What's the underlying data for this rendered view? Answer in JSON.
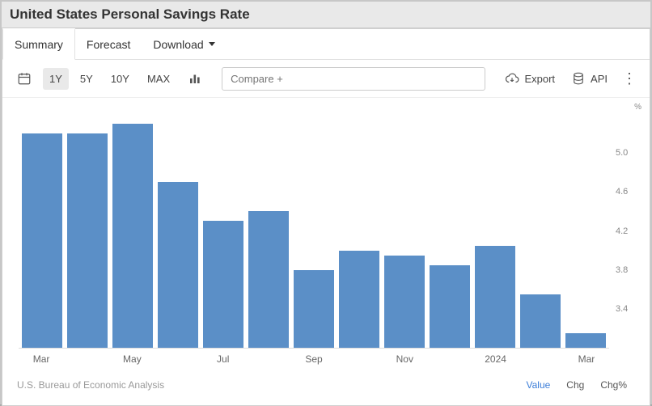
{
  "title": "United States Personal Savings Rate",
  "tabs": {
    "summary": "Summary",
    "forecast": "Forecast",
    "download": "Download"
  },
  "ranges": {
    "y1": "1Y",
    "y5": "5Y",
    "y10": "10Y",
    "max": "MAX"
  },
  "compare_placeholder": "Compare +",
  "actions": {
    "export": "Export",
    "api": "API"
  },
  "source": "U.S. Bureau of Economic Analysis",
  "metrics": {
    "value": "Value",
    "chg": "Chg",
    "chgp": "Chg%"
  },
  "chart": {
    "type": "bar",
    "unit": "%",
    "bar_color": "#5b8fc7",
    "background_color": "#ffffff",
    "grid_color": "#dddddd",
    "y": {
      "min": 3.0,
      "max": 5.4,
      "ticks": [
        3.4,
        3.8,
        4.2,
        4.6,
        5.0
      ]
    },
    "x_labels": [
      {
        "label": "Mar",
        "index": 0
      },
      {
        "label": "May",
        "index": 2
      },
      {
        "label": "Jul",
        "index": 4
      },
      {
        "label": "Sep",
        "index": 6
      },
      {
        "label": "Nov",
        "index": 8
      },
      {
        "label": "2024",
        "index": 10
      },
      {
        "label": "Mar",
        "index": 12
      }
    ],
    "values": [
      5.2,
      5.2,
      5.3,
      4.7,
      4.3,
      4.4,
      3.8,
      4.0,
      3.95,
      3.85,
      4.05,
      3.55,
      3.15
    ],
    "label_fontsize": 11
  }
}
